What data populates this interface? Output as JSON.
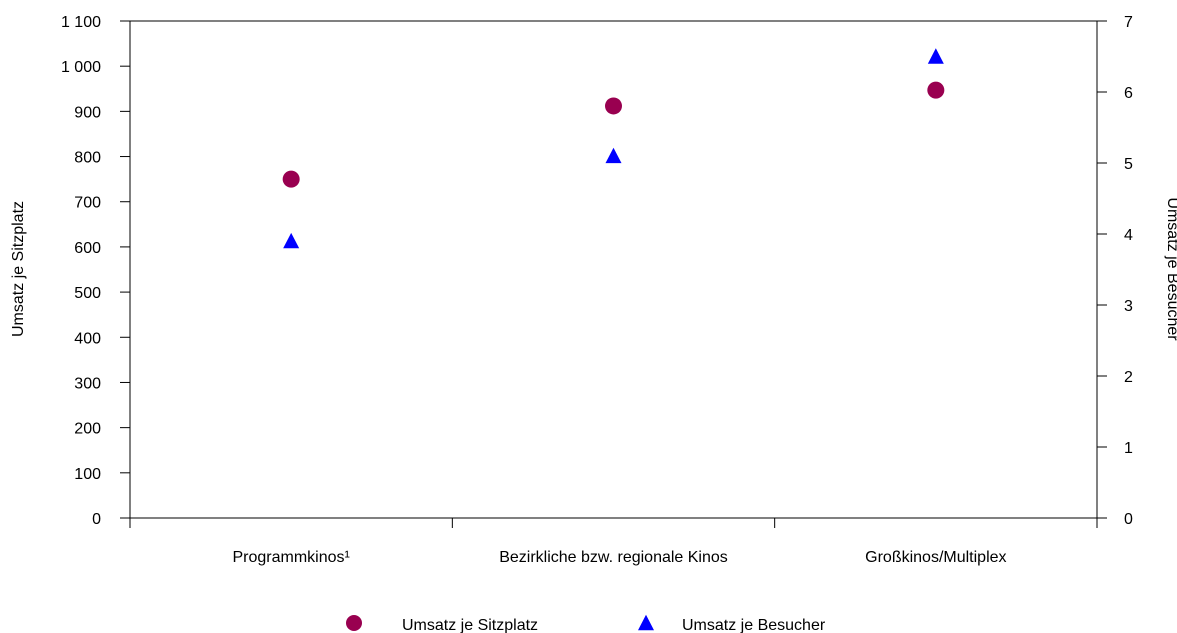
{
  "chart_data": {
    "type": "scatter",
    "categories": [
      "Programmkinos¹",
      "Bezirkliche bzw. regionale Kinos",
      "Großkinos/Multiplex"
    ],
    "series": [
      {
        "name": "Umsatz je Sitzplatz",
        "axis": "left",
        "marker": "circle",
        "color": "#990050",
        "values": [
          750,
          912,
          947
        ]
      },
      {
        "name": "Umsatz je Besucher",
        "axis": "right",
        "marker": "triangle",
        "color": "#0000ff",
        "values": [
          3.9,
          5.1,
          6.5
        ]
      }
    ],
    "ylabel": "Umsatz je Sitzplatz",
    "y2label": "Umsatz je Besucher",
    "ylim": [
      0,
      1100
    ],
    "y2lim": [
      0,
      7
    ],
    "yticks": [
      0,
      100,
      200,
      300,
      400,
      500,
      600,
      700,
      800,
      900,
      1000,
      1100
    ],
    "ytick_labels": [
      "0",
      "100",
      "200",
      "300",
      "400",
      "500",
      "600",
      "700",
      "800",
      "900",
      "1 000",
      "1 100"
    ],
    "y2ticks": [
      0,
      1,
      2,
      3,
      4,
      5,
      6,
      7
    ],
    "y2tick_labels": [
      "0",
      "1",
      "2",
      "3",
      "4",
      "5",
      "6",
      "7"
    ],
    "grid": false,
    "legend": "bottom"
  }
}
